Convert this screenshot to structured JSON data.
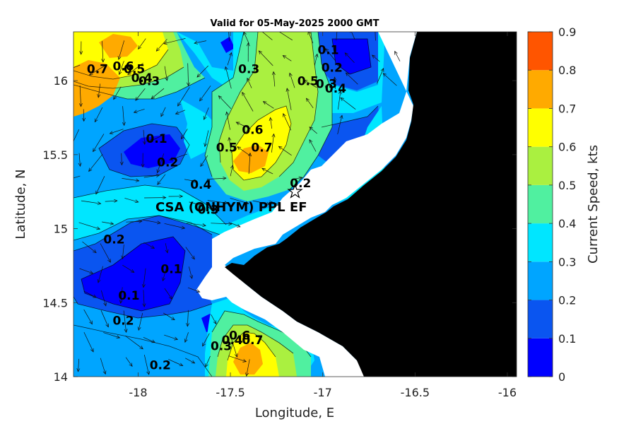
{
  "chart_data": {
    "type": "contour",
    "title": "Valid for 05-May-2025 2000 GMT",
    "xlabel": "Longitude, E",
    "ylabel": "Latitude, N",
    "xlim": [
      -18.35,
      -15.95
    ],
    "ylim": [
      14.0,
      16.33
    ],
    "x_ticks": [
      {
        "value": -18,
        "label": "-18"
      },
      {
        "value": -17.5,
        "label": "-17.5"
      },
      {
        "value": -17,
        "label": "-17"
      },
      {
        "value": -16.5,
        "label": "-16.5"
      },
      {
        "value": -16,
        "label": "-16"
      }
    ],
    "y_ticks": [
      {
        "value": 14,
        "label": "14"
      },
      {
        "value": 14.5,
        "label": "14.5"
      },
      {
        "value": 15,
        "label": "15"
      },
      {
        "value": 15.5,
        "label": "15.5"
      },
      {
        "value": 16,
        "label": "16"
      }
    ],
    "colorbar": {
      "label": "Current Speed, kts",
      "levels": [
        0,
        0.1,
        0.2,
        0.3,
        0.4,
        0.5,
        0.6,
        0.7,
        0.8,
        0.9
      ],
      "tick_labels": [
        "0",
        "0.1",
        "0.2",
        "0.3",
        "0.4",
        "0.5",
        "0.6",
        "0.7",
        "0.8",
        "0.9"
      ],
      "colors": [
        "#0000ff",
        "#0a55f0",
        "#00a5ff",
        "#00e6ff",
        "#50f0a0",
        "#aaf040",
        "#ffff00",
        "#ffaa00",
        "#ff5500"
      ]
    },
    "station": {
      "label": "CSA (ONHYM) PPL EF",
      "lon": -17.15,
      "lat": 15.25
    },
    "contour_labels": [
      {
        "text": "0.7",
        "lon": -18.22,
        "lat": 16.05
      },
      {
        "text": "0.6",
        "lon": -18.08,
        "lat": 16.07
      },
      {
        "text": "0.5",
        "lon": -18.02,
        "lat": 16.05
      },
      {
        "text": "0.4",
        "lon": -17.98,
        "lat": 15.99
      },
      {
        "text": "0.3",
        "lon": -17.94,
        "lat": 15.97
      },
      {
        "text": "0.3",
        "lon": -17.4,
        "lat": 16.05
      },
      {
        "text": "0.1",
        "lon": -16.97,
        "lat": 16.18
      },
      {
        "text": "0.2",
        "lon": -16.95,
        "lat": 16.06
      },
      {
        "text": "0.4",
        "lon": -16.93,
        "lat": 15.92
      },
      {
        "text": "0.3",
        "lon": -16.98,
        "lat": 15.95
      },
      {
        "text": "0.5",
        "lon": -17.08,
        "lat": 15.97
      },
      {
        "text": "0.1",
        "lon": -17.9,
        "lat": 15.58
      },
      {
        "text": "0.2",
        "lon": -17.84,
        "lat": 15.42
      },
      {
        "text": "0.6",
        "lon": -17.38,
        "lat": 15.64
      },
      {
        "text": "0.7",
        "lon": -17.33,
        "lat": 15.52
      },
      {
        "text": "0.5",
        "lon": -17.52,
        "lat": 15.52
      },
      {
        "text": "0.4",
        "lon": -17.66,
        "lat": 15.27
      },
      {
        "text": "0.3",
        "lon": -17.62,
        "lat": 15.1
      },
      {
        "text": "0.2",
        "lon": -17.12,
        "lat": 15.28
      },
      {
        "text": "0.2",
        "lon": -18.13,
        "lat": 14.9
      },
      {
        "text": "0.1",
        "lon": -17.82,
        "lat": 14.7
      },
      {
        "text": "0.1",
        "lon": -18.05,
        "lat": 14.52
      },
      {
        "text": "0.2",
        "lon": -18.08,
        "lat": 14.35
      },
      {
        "text": "0.2",
        "lon": -17.88,
        "lat": 14.05
      },
      {
        "text": "0.3",
        "lon": -17.55,
        "lat": 14.18
      },
      {
        "text": "0.4",
        "lon": -17.49,
        "lat": 14.22
      },
      {
        "text": "0.6",
        "lon": -17.45,
        "lat": 14.25
      },
      {
        "text": "0.7",
        "lon": -17.38,
        "lat": 14.22
      }
    ]
  }
}
